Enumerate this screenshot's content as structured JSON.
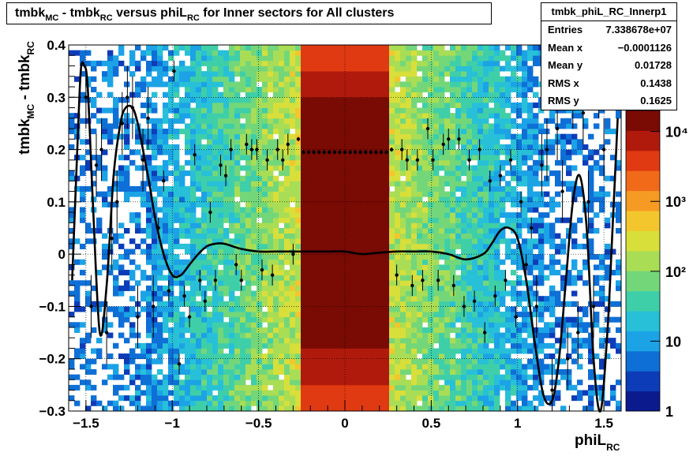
{
  "title": {
    "part1": "tmbk",
    "sub1": "MC",
    "part2": " - tmbk",
    "sub2": "RC",
    "part3": " versus phiL",
    "sub3": "RC",
    "part4": " for Inner sectors for All clusters"
  },
  "stats": {
    "name": "tmbk_phiL_RC_Innerp1",
    "rows": [
      {
        "label": "Entries",
        "value": "7.338678e+07"
      },
      {
        "label": "Mean x",
        "value": "−0.0001126"
      },
      {
        "label": "Mean y",
        "value": "0.01728"
      },
      {
        "label": "RMS x",
        "value": "0.1438"
      },
      {
        "label": "RMS y",
        "value": "0.1625"
      }
    ]
  },
  "axes": {
    "xlabel": {
      "main": "phiL",
      "sub": "RC"
    },
    "ylabel": {
      "main1": "tmbk",
      "sub1": "MC",
      "main2": " - tmbk",
      "sub2": "RC"
    }
  },
  "colors": {
    "palette": [
      "#0b1a8c",
      "#0d3cb8",
      "#0e6fd6",
      "#1ba3e6",
      "#27c0d8",
      "#3fcfa8",
      "#73d77a",
      "#a9dd55",
      "#d8df3a",
      "#f2c62c",
      "#f59a22",
      "#f06a1a",
      "#e03a12",
      "#b01a0c",
      "#7a0a04"
    ],
    "profile": "#000000"
  },
  "chart_data": {
    "type": "heatmap",
    "title": "tmbk_MC - tmbk_RC versus phiL_RC for Inner sectors for All clusters",
    "xlabel": "phiL_RC",
    "ylabel": "tmbk_MC - tmbk_RC",
    "xlim": [
      -1.6,
      1.6
    ],
    "ylim": [
      -0.3,
      0.4
    ],
    "zscale": "log",
    "zlim": [
      1,
      20000
    ],
    "grid": true,
    "x_ticks": [
      "−1.5",
      "−1",
      "−0.5",
      "0",
      "0.5",
      "1",
      "1.5"
    ],
    "x_tick_values": [
      -1.5,
      -1,
      -0.5,
      0,
      0.5,
      1,
      1.5
    ],
    "y_ticks": [
      "−0.3",
      "−0.2",
      "−0.1",
      "0",
      "0.1",
      "0.2",
      "0.3",
      "0.4"
    ],
    "y_tick_values": [
      -0.3,
      -0.2,
      -0.1,
      0,
      0.1,
      0.2,
      0.3,
      0.4
    ],
    "z_ticks": [
      "1",
      "10",
      "10²",
      "10³",
      "10⁴"
    ],
    "z_tick_values": [
      1,
      10,
      100,
      1000,
      10000
    ],
    "density_regions": [
      {
        "x": [
          -0.24,
          0.24
        ],
        "y": [
          -0.3,
          0.4
        ],
        "level": "10^4"
      },
      {
        "x": [
          -0.24,
          0.24
        ],
        "y": [
          -0.17,
          0.3
        ],
        "level": "max"
      },
      {
        "x": [
          -0.6,
          -0.24
        ],
        "y": [
          -0.3,
          0.4
        ],
        "level": "10^2.5"
      },
      {
        "x": [
          0.24,
          0.6
        ],
        "y": [
          -0.3,
          0.4
        ],
        "level": "10^2.3"
      }
    ],
    "profile_curve": {
      "x": [
        -1.58,
        -1.55,
        -1.53,
        -1.51,
        -1.49,
        -1.46,
        -1.42,
        -1.38,
        -1.34,
        -1.3,
        -1.27,
        -1.23,
        -1.2,
        -1.17,
        -1.13,
        -1.1,
        -1.05,
        -1.0,
        -0.95,
        -0.9,
        -0.85,
        -0.8,
        -0.75,
        -0.7,
        -0.65,
        -0.6,
        -0.5,
        -0.4,
        -0.3,
        -0.2,
        -0.1,
        0.0,
        0.1,
        0.2,
        0.3,
        0.4,
        0.5,
        0.6,
        0.7,
        0.8,
        0.85,
        0.9,
        0.95,
        1.0,
        1.05,
        1.1,
        1.15,
        1.2,
        1.24,
        1.28,
        1.32,
        1.36,
        1.4,
        1.44,
        1.48,
        1.52,
        1.55,
        1.58
      ],
      "y": [
        -0.05,
        0.2,
        0.35,
        0.36,
        0.32,
        0.1,
        -0.15,
        -0.06,
        0.15,
        0.25,
        0.28,
        0.28,
        0.25,
        0.2,
        0.13,
        0.07,
        0.0,
        -0.04,
        -0.04,
        -0.02,
        0.0,
        0.015,
        0.02,
        0.02,
        0.015,
        0.01,
        0.005,
        0.005,
        0.005,
        0.005,
        0.005,
        0.005,
        0.0,
        0.003,
        0.005,
        0.005,
        0.005,
        0.0,
        -0.01,
        0.0,
        0.02,
        0.045,
        0.05,
        0.03,
        -0.05,
        -0.17,
        -0.27,
        -0.28,
        -0.2,
        -0.05,
        0.1,
        0.15,
        0.05,
        -0.2,
        -0.3,
        -0.15,
        0.05,
        0.26
      ]
    },
    "profile_points": {
      "x": [
        -1.5,
        -1.47,
        -1.44,
        -1.41,
        -1.38,
        -1.35,
        -1.32,
        -1.29,
        -1.26,
        -1.23,
        -1.2,
        -1.17,
        -1.14,
        -1.11,
        -1.08,
        -1.05,
        -1.02,
        -0.99,
        -0.96,
        -0.93,
        -0.9,
        -0.87,
        -0.84,
        -0.81,
        -0.78,
        -0.75,
        -0.72,
        -0.69,
        -0.66,
        -0.63,
        -0.6,
        -0.57,
        -0.54,
        -0.51,
        -0.48,
        -0.45,
        -0.42,
        -0.39,
        -0.36,
        -0.33,
        -0.3,
        -0.27,
        -0.24,
        -0.21,
        -0.18,
        -0.15,
        -0.12,
        -0.09,
        -0.06,
        -0.03,
        0.0,
        0.03,
        0.06,
        0.09,
        0.12,
        0.15,
        0.18,
        0.21,
        0.24,
        0.27,
        0.3,
        0.33,
        0.36,
        0.39,
        0.42,
        0.45,
        0.48,
        0.51,
        0.54,
        0.57,
        0.6,
        0.63,
        0.66,
        0.69,
        0.72,
        0.75,
        0.78,
        0.81,
        0.84,
        0.87,
        0.9,
        0.93,
        0.96,
        0.99,
        1.02,
        1.05,
        1.08,
        1.11,
        1.14,
        1.17,
        1.2,
        1.23,
        1.26,
        1.29,
        1.32,
        1.35,
        1.38,
        1.41,
        1.44,
        1.47,
        1.5
      ],
      "y": [
        0.3,
        -0.1,
        0.17,
        0.2,
        -0.15,
        0.03,
        0.1,
        0.25,
        0.3,
        0.28,
        -0.12,
        0.18,
        0.26,
        -0.1,
        0.05,
        0.14,
        -0.07,
        0.35,
        -0.21,
        -0.08,
        -0.12,
        0.19,
        -0.05,
        -0.09,
        0.08,
        -0.05,
        0.17,
        0.15,
        0.2,
        -0.02,
        -0.05,
        0.21,
        0.2,
        0.2,
        -0.03,
        0.18,
        -0.04,
        0.2,
        0.18,
        0.21,
        0.0,
        0.22,
        0.195,
        0.195,
        0.195,
        0.195,
        0.195,
        0.195,
        0.195,
        0.195,
        0.195,
        0.195,
        0.195,
        0.195,
        0.195,
        0.195,
        0.195,
        0.195,
        0.195,
        0.2,
        -0.04,
        0.2,
        0.18,
        -0.06,
        0.18,
        -0.05,
        0.24,
        0.18,
        -0.05,
        0.21,
        0.22,
        -0.06,
        0.22,
        -0.1,
        0.18,
        -0.09,
        0.2,
        -0.15,
        0.14,
        -0.08,
        0.15,
        -0.05,
        0.18,
        -0.12,
        0.1,
        -0.02,
        0.05,
        -0.1,
        0.17,
        0.2,
        -0.26,
        0.24,
        0.12,
        -0.2,
        0.3,
        -0.15,
        0.27,
        0.1,
        -0.1,
        0.32,
        0.2
      ]
    }
  }
}
